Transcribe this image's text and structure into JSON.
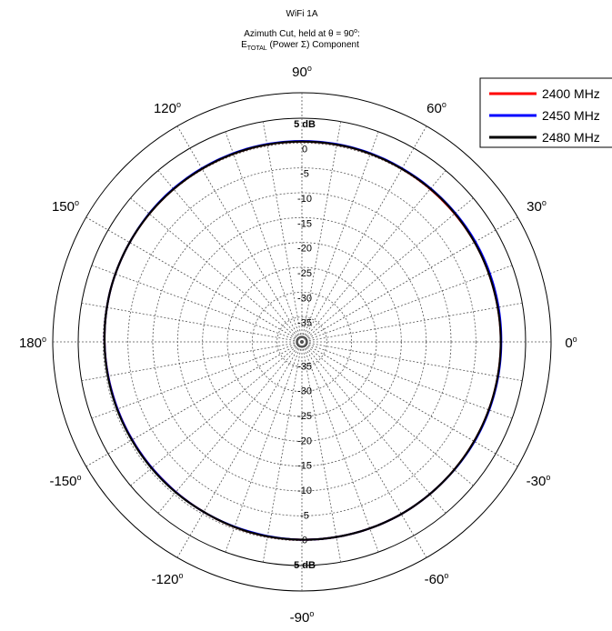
{
  "chart_data": {
    "type": "polar-line",
    "title": "WiFi 1A",
    "subtitle_line1": "Azimuth Cut, held at θ = 90",
    "subtitle_line1_sup": "o",
    "subtitle_line1_tail": ":",
    "subtitle_line2_main": "E",
    "subtitle_line2_sub": "TOTAL",
    "subtitle_line2_tail": " (Power Σ) Component",
    "r_unit": "dB",
    "r_max": 5,
    "r_min": -40,
    "r_tick_labels_top": [
      "5 dB",
      "0",
      "-5",
      "-10",
      "-15",
      "-20",
      "-25",
      "-30",
      "-35"
    ],
    "r_tick_labels_bottom": [
      "-35",
      "-30",
      "-25",
      "-20",
      "-15",
      "-10",
      "-5",
      "0",
      "5 dB"
    ],
    "angle_labels": [
      {
        "deg": 0,
        "text": "0"
      },
      {
        "deg": 30,
        "text": "30"
      },
      {
        "deg": 60,
        "text": "60"
      },
      {
        "deg": 90,
        "text": "90"
      },
      {
        "deg": 120,
        "text": "120"
      },
      {
        "deg": 150,
        "text": "150"
      },
      {
        "deg": 180,
        "text": "180"
      },
      {
        "deg": -150,
        "text": "-150"
      },
      {
        "deg": -120,
        "text": "-120"
      },
      {
        "deg": -90,
        "text": "-90"
      },
      {
        "deg": -60,
        "text": "-60"
      },
      {
        "deg": -30,
        "text": "-30"
      }
    ],
    "degree_symbol": "o",
    "grid": true,
    "legend_position": "top-right",
    "angles_deg": [
      0,
      15,
      30,
      45,
      60,
      75,
      90,
      105,
      120,
      135,
      150,
      165,
      180,
      195,
      210,
      225,
      240,
      255,
      270,
      285,
      300,
      315,
      330,
      345
    ],
    "series": [
      {
        "name": "2400 MHz",
        "color": "#ff0000",
        "values": [
          0.0,
          0.0,
          0.1,
          0.1,
          0.2,
          0.3,
          0.3,
          0.3,
          0.2,
          0.1,
          0.0,
          -0.1,
          -0.3,
          -0.5,
          -0.6,
          -0.6,
          -0.5,
          -0.3,
          -0.2,
          -0.1,
          0.0,
          0.0,
          0.0,
          0.0
        ]
      },
      {
        "name": "2450 MHz",
        "color": "#0000ff",
        "values": [
          0.1,
          0.2,
          0.3,
          0.3,
          0.3,
          0.4,
          0.4,
          0.4,
          0.3,
          0.2,
          0.0,
          -0.1,
          -0.3,
          -0.5,
          -0.6,
          -0.6,
          -0.5,
          -0.4,
          -0.2,
          -0.1,
          0.0,
          0.0,
          0.1,
          0.1
        ]
      },
      {
        "name": "2480 MHz",
        "color": "#000000",
        "values": [
          0.0,
          0.0,
          0.1,
          0.2,
          0.2,
          0.3,
          0.3,
          0.3,
          0.2,
          0.1,
          0.0,
          -0.1,
          -0.3,
          -0.4,
          -0.5,
          -0.5,
          -0.5,
          -0.3,
          -0.2,
          -0.1,
          0.0,
          0.0,
          0.0,
          0.0
        ]
      }
    ]
  }
}
